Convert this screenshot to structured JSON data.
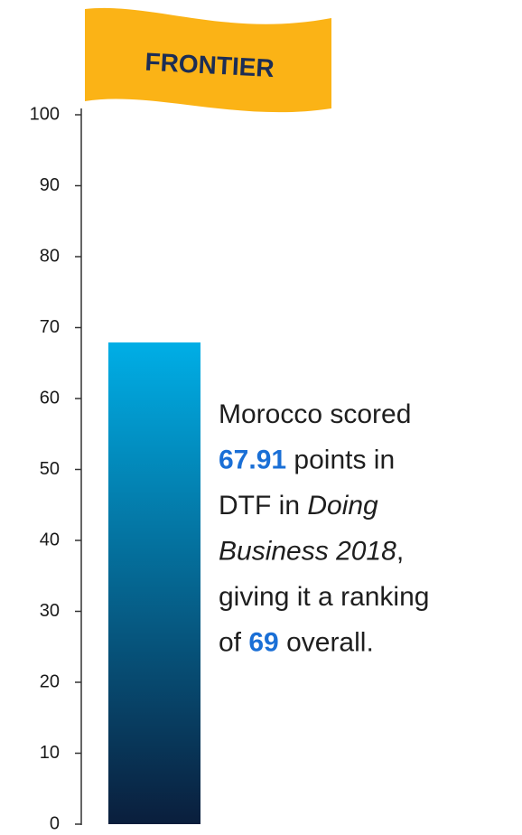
{
  "chart_data": {
    "type": "bar",
    "flag": "FRONTIER",
    "values": [
      67.91
    ],
    "ylim": [
      0,
      100
    ],
    "yticks": [
      0,
      10,
      20,
      30,
      40,
      50,
      60,
      70,
      80,
      90,
      100
    ],
    "color": [
      "#00aee6",
      "#0a1e3c"
    ],
    "annotation": [
      [
        {
          "text": "Morocco scored",
          "style": "normal"
        }
      ],
      [
        {
          "text": "67.91",
          "style": "bold"
        },
        {
          "text": " points in",
          "style": "normal"
        }
      ],
      [
        {
          "text": "DTF in ",
          "style": "normal"
        },
        {
          "text": "Doing",
          "style": "italic"
        }
      ],
      [
        {
          "text": "Business 2018",
          "style": "italic"
        },
        {
          "text": ",",
          "style": "normal"
        }
      ],
      [
        {
          "text": "giving it a ranking",
          "style": "normal"
        }
      ],
      [
        {
          "text": "of ",
          "style": "normal"
        },
        {
          "text": "69",
          "style": "bold"
        },
        {
          "text": " overall.",
          "style": "normal"
        }
      ]
    ]
  }
}
